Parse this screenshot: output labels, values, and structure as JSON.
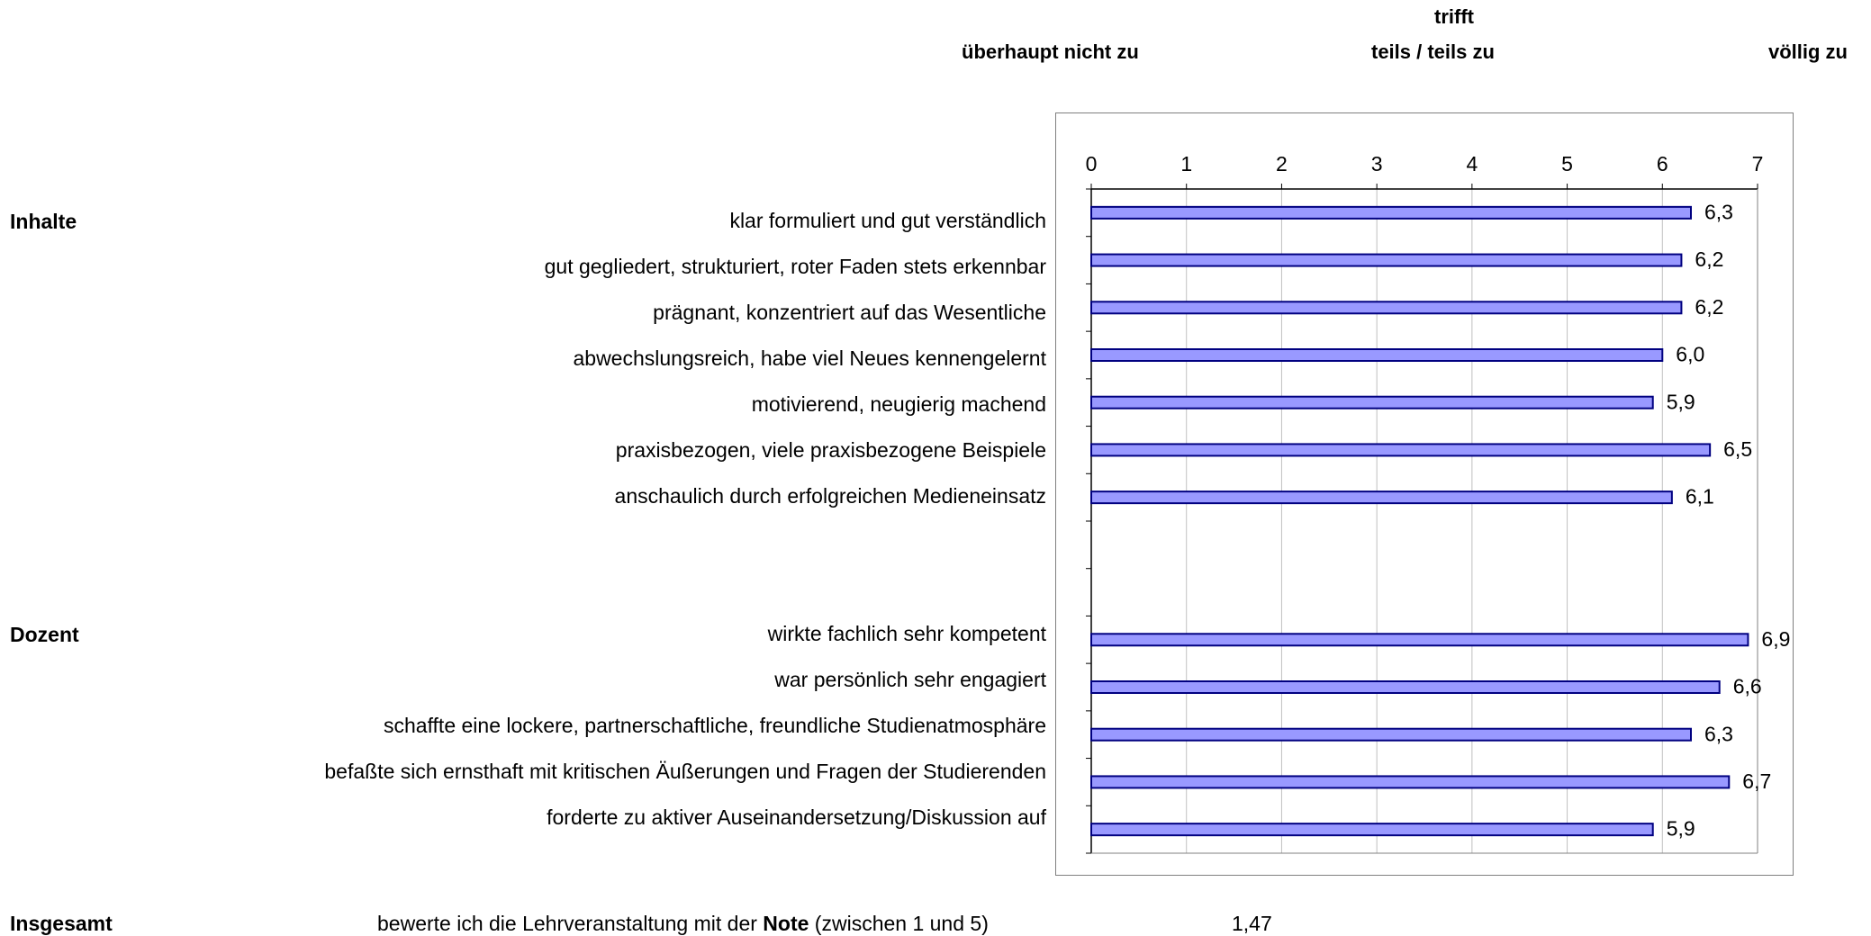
{
  "scale_header": {
    "left": "überhaupt nicht zu",
    "middle_top": "trifft",
    "middle": "teils / teils zu",
    "right": "völlig zu"
  },
  "sections": {
    "inhalte": "Inhalte",
    "dozent": "Dozent",
    "insgesamt": "Insgesamt"
  },
  "items": [
    "klar formuliert und gut verständlich",
    "gut gegliedert, strukturiert, roter Faden stets erkennbar",
    "prägnant, konzentriert auf das Wesentliche",
    "abwechslungsreich, habe viel Neues kennengelernt",
    "motivierend, neugierig machend",
    "praxisbezogen, viele praxisbezogene Beispiele",
    "anschaulich durch erfolgreichen Medieneinsatz",
    "wirkte fachlich sehr kompetent",
    "war persönlich sehr engagiert",
    "schaffte eine lockere, partnerschaftliche, freundliche Studienatmosphäre",
    "befaßte sich ernsthaft mit kritischen Äußerungen und Fragen der Studierenden",
    "forderte zu aktiver Auseinandersetzung/Diskussion auf"
  ],
  "overall": {
    "prefix": "bewerte ich die Lehrveranstaltung mit der ",
    "bold": "Note",
    "suffix": " (zwischen 1 und 5)",
    "value": "1,47"
  },
  "chart_data": {
    "type": "bar",
    "orientation": "horizontal",
    "xlim": [
      0,
      7
    ],
    "xticks": [
      "0",
      "1",
      "2",
      "3",
      "4",
      "5",
      "6",
      "7"
    ],
    "grid": true,
    "bar_color": "#9999ff",
    "bar_border_color": "#000080",
    "categories": [
      "klar formuliert und gut verständlich",
      "gut gegliedert, strukturiert, roter Faden stets erkennbar",
      "prägnant, konzentriert auf das Wesentliche",
      "abwechslungsreich, habe viel Neues kennengelernt",
      "motivierend, neugierig machend",
      "praxisbezogen, viele praxisbezogene Beispiele",
      "anschaulich durch erfolgreichen Medieneinsatz",
      "",
      "",
      "wirkte fachlich sehr kompetent",
      "war persönlich sehr engagiert",
      "schaffte eine lockere, partnerschaftliche, freundliche Studienatmosphäre",
      "befaßte sich ernsthaft mit kritischen Äußerungen und Fragen der Studierenden",
      "forderte zu aktiver Auseinandersetzung/Diskussion auf"
    ],
    "values": [
      6.3,
      6.2,
      6.2,
      6.0,
      5.9,
      6.5,
      6.1,
      null,
      null,
      6.9,
      6.6,
      6.3,
      6.7,
      5.9
    ],
    "labels": [
      "6,3",
      "6,2",
      "6,2",
      "6,0",
      "5,9",
      "6,5",
      "6,1",
      "",
      "",
      "6,9",
      "6,6",
      "6,3",
      "6,7",
      "5,9"
    ]
  }
}
